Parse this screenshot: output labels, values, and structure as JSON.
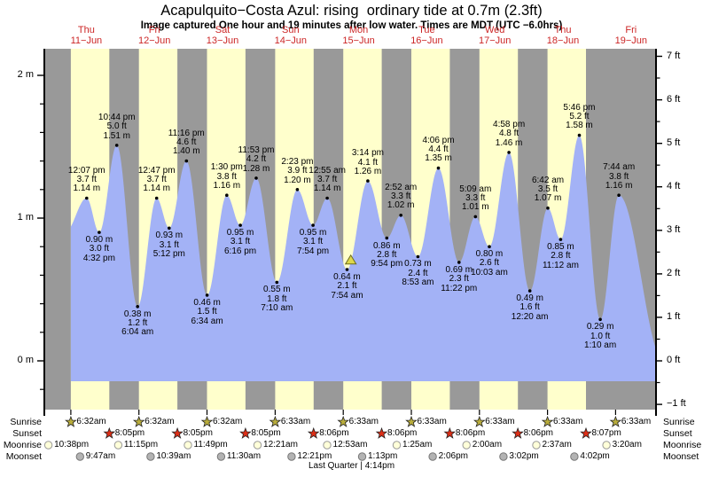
{
  "title": "Acapulquito−Costa Azul: rising  ordinary tide at 0.7m (2.3ft)",
  "subtitle": "Image captured One hour and 19 minutes after low water. Times are MDT (UTC −6.0hrs)",
  "footer": "Last Quarter | 4:14pm",
  "colors": {
    "day_band": "#ffffcc",
    "night_band": "#999999",
    "tide_fill": "#a3b2f6",
    "day_label_red": "#cc2626",
    "sunrise_star": "#b9ad3c",
    "sunset_star": "#dd2e16",
    "moonrise_fill": "#ffffd9",
    "moonset_fill": "#b3b3b3",
    "marker_fill": "#ded84b",
    "marker_stroke": "#6b6b1e",
    "text": "#000000"
  },
  "x_axis": {
    "days": [
      {
        "dow": "Thu",
        "date": "11−Jun"
      },
      {
        "dow": "Fri",
        "date": "12−Jun"
      },
      {
        "dow": "Sat",
        "date": "13−Jun"
      },
      {
        "dow": "Sun",
        "date": "14−Jun"
      },
      {
        "dow": "Mon",
        "date": "15−Jun"
      },
      {
        "dow": "Tue",
        "date": "16−Jun"
      },
      {
        "dow": "Wed",
        "date": "17−Jun"
      },
      {
        "dow": "Thu",
        "date": "18−Jun"
      },
      {
        "dow": "Fri",
        "date": "19−Jun"
      }
    ]
  },
  "y_axis_left": {
    "unit": "meters",
    "ticks": [
      {
        "label": "2 m",
        "value": 2
      },
      {
        "label": "1 m",
        "value": 1
      },
      {
        "label": "0 m",
        "value": 0
      }
    ]
  },
  "y_axis_right": {
    "unit": "feet",
    "ticks": [
      {
        "label": "7 ft",
        "value": 7
      },
      {
        "label": "6 ft",
        "value": 6
      },
      {
        "label": "5 ft",
        "value": 5
      },
      {
        "label": "4 ft",
        "value": 4
      },
      {
        "label": "3 ft",
        "value": 3
      },
      {
        "label": "2 ft",
        "value": 2
      },
      {
        "label": "1 ft",
        "value": 1
      },
      {
        "label": "0 ft",
        "value": 0
      },
      {
        "label": "−1 ft",
        "value": -1
      }
    ]
  },
  "chart_data": {
    "type": "area",
    "description": "Tide height curve, cosine-interpolated between high/low extremes; t = hours after Thu 11-Jun 00:00, h = meters",
    "ylim_m": [
      -1,
      2.2
    ],
    "tides": [
      {
        "kind": "high",
        "time": "12:07 pm",
        "ft": "3.7 ft",
        "m": "1.14 m",
        "t": 12.117,
        "h": 1.14
      },
      {
        "kind": "low",
        "m": "0.90 m",
        "ft": "3.0 ft",
        "time": "4:32 pm",
        "t": 16.533,
        "h": 0.9
      },
      {
        "kind": "high",
        "time": "10:44 pm",
        "ft": "5.0 ft",
        "m": "1.51 m",
        "t": 22.733,
        "h": 1.51
      },
      {
        "kind": "low",
        "m": "0.38 m",
        "ft": "1.2 ft",
        "time": "6:04 am",
        "t": 30.067,
        "h": 0.38
      },
      {
        "kind": "high",
        "time": "12:47 pm",
        "ft": "3.7 ft",
        "m": "1.14 m",
        "t": 36.783,
        "h": 1.14
      },
      {
        "kind": "low",
        "m": "0.93 m",
        "ft": "3.1 ft",
        "time": "5:12 pm",
        "t": 41.2,
        "h": 0.93
      },
      {
        "kind": "high",
        "time": "11:16 pm",
        "ft": "4.6 ft",
        "m": "1.40 m",
        "t": 47.267,
        "h": 1.4
      },
      {
        "kind": "low",
        "m": "0.46 m",
        "ft": "1.5 ft",
        "time": "6:34 am",
        "t": 54.567,
        "h": 0.46
      },
      {
        "kind": "high",
        "time": "1:30 pm",
        "ft": "3.8 ft",
        "m": "1.16 m",
        "t": 61.5,
        "h": 1.16
      },
      {
        "kind": "low",
        "m": "0.95 m",
        "ft": "3.1 ft",
        "time": "6:16 pm",
        "t": 66.267,
        "h": 0.95
      },
      {
        "kind": "high",
        "time": "11:53 pm",
        "ft": "4.2 ft",
        "m": "1.28 m",
        "t": 71.883,
        "h": 1.28
      },
      {
        "kind": "low",
        "m": "0.55 m",
        "ft": "1.8 ft",
        "time": "7:10 am",
        "t": 79.167,
        "h": 0.55
      },
      {
        "kind": "high",
        "time": "2:23 pm",
        "ft": "3.9 ft",
        "m": "1.20 m",
        "t": 86.383,
        "h": 1.2
      },
      {
        "kind": "low",
        "m": "0.95 m",
        "ft": "3.1 ft",
        "time": "7:54 pm",
        "t": 91.9,
        "h": 0.95
      },
      {
        "kind": "high",
        "time": "12:55 am",
        "ft": "3.7 ft",
        "m": "1.14 m",
        "t": 96.917,
        "h": 1.14
      },
      {
        "kind": "low",
        "m": "0.64 m",
        "ft": "2.1 ft",
        "time": "7:54 am",
        "t": 103.9,
        "h": 0.64
      },
      {
        "kind": "high",
        "time": "3:14 pm",
        "ft": "4.1 ft",
        "m": "1.26 m",
        "t": 111.233,
        "h": 1.26
      },
      {
        "kind": "low",
        "m": "0.86 m",
        "ft": "2.8 ft",
        "time": "9:54 pm",
        "t": 117.9,
        "h": 0.86
      },
      {
        "kind": "high",
        "time": "2:52 am",
        "ft": "3.3 ft",
        "m": "1.02 m",
        "t": 122.867,
        "h": 1.02
      },
      {
        "kind": "low",
        "m": "0.73 m",
        "ft": "2.4 ft",
        "time": "8:53 am",
        "t": 128.883,
        "h": 0.73
      },
      {
        "kind": "high",
        "time": "4:06 pm",
        "ft": "4.4 ft",
        "m": "1.35 m",
        "t": 136.1,
        "h": 1.35
      },
      {
        "kind": "low",
        "m": "0.69 m",
        "ft": "2.3 ft",
        "time": "11:22 pm",
        "t": 143.367,
        "h": 0.69
      },
      {
        "kind": "high",
        "time": "5:09 am",
        "ft": "3.3 ft",
        "m": "1.01 m",
        "t": 149.15,
        "h": 1.01
      },
      {
        "kind": "low",
        "m": "0.80 m",
        "ft": "2.6 ft",
        "time": "10:03 am",
        "t": 154.05,
        "h": 0.8
      },
      {
        "kind": "high",
        "time": "4:58 pm",
        "ft": "4.8 ft",
        "m": "1.46 m",
        "t": 160.967,
        "h": 1.46
      },
      {
        "kind": "low",
        "m": "0.49 m",
        "ft": "1.6 ft",
        "time": "12:20 am",
        "t": 168.333,
        "h": 0.49
      },
      {
        "kind": "high",
        "time": "6:42 am",
        "ft": "3.5 ft",
        "m": "1.07 m",
        "t": 174.7,
        "h": 1.07
      },
      {
        "kind": "low",
        "m": "0.85 m",
        "ft": "2.8 ft",
        "time": "11:12 am",
        "t": 179.2,
        "h": 0.85
      },
      {
        "kind": "high",
        "time": "5:46 pm",
        "ft": "5.2 ft",
        "m": "1.58 m",
        "t": 185.767,
        "h": 1.58
      },
      {
        "kind": "low",
        "m": "0.29 m",
        "ft": "1.0 ft",
        "time": "1:10 am",
        "t": 193.167,
        "h": 0.29
      },
      {
        "kind": "high",
        "time": "7:44 am",
        "ft": "3.8 ft",
        "m": "1.16 m",
        "t": 199.733,
        "h": 1.16
      }
    ],
    "marker": {
      "note": "current tide 0.7m rising (yellow triangle)",
      "t": 105.217,
      "h": 0.7
    },
    "curve_ends": {
      "start": {
        "t": 4.5,
        "h": 0.9
      },
      "end": {
        "t": 215.5,
        "h": 0.0
      },
      "t_start": 6.533,
      "t_end": 212.8,
      "fill_base_m": -0.143
    }
  },
  "astro": {
    "row_labels": [
      "Sunrise",
      "Sunset",
      "Moonrise",
      "Moonset"
    ],
    "sunrise": [
      {
        "time": "6:32am",
        "t": 6.533
      },
      {
        "time": "6:32am",
        "t": 30.533
      },
      {
        "time": "6:32am",
        "t": 54.533
      },
      {
        "time": "6:33am",
        "t": 78.55
      },
      {
        "time": "6:33am",
        "t": 102.55
      },
      {
        "time": "6:33am",
        "t": 126.55
      },
      {
        "time": "6:33am",
        "t": 150.55
      },
      {
        "time": "6:33am",
        "t": 174.55
      },
      {
        "time": "6:33am",
        "t": 198.55
      }
    ],
    "sunset": [
      {
        "time": "8:05pm",
        "t": 20.083
      },
      {
        "time": "8:05pm",
        "t": 44.083
      },
      {
        "time": "8:05pm",
        "t": 68.083
      },
      {
        "time": "8:06pm",
        "t": 92.1
      },
      {
        "time": "8:06pm",
        "t": 116.1
      },
      {
        "time": "8:06pm",
        "t": 140.1
      },
      {
        "time": "8:06pm",
        "t": 164.1
      },
      {
        "time": "8:07pm",
        "t": 188.117
      }
    ],
    "moonrise": [
      {
        "time": "10:38pm",
        "t": -1.367
      },
      {
        "time": "11:15pm",
        "t": 23.25
      },
      {
        "time": "11:49pm",
        "t": 47.817
      },
      {
        "time": "12:21am",
        "t": 72.35
      },
      {
        "time": "12:53am",
        "t": 96.883
      },
      {
        "time": "1:25am",
        "t": 121.417
      },
      {
        "time": "2:00am",
        "t": 146.0
      },
      {
        "time": "2:37am",
        "t": 170.617
      },
      {
        "time": "3:20am",
        "t": 195.333
      }
    ],
    "moonset": [
      {
        "time": "9:47am",
        "t": 9.783
      },
      {
        "time": "10:39am",
        "t": 34.65
      },
      {
        "time": "11:30am",
        "t": 59.5
      },
      {
        "time": "12:21pm",
        "t": 84.35
      },
      {
        "time": "1:13pm",
        "t": 109.217
      },
      {
        "time": "2:06pm",
        "t": 134.1
      },
      {
        "time": "3:02pm",
        "t": 159.033
      },
      {
        "time": "4:02pm",
        "t": 184.033
      }
    ]
  }
}
